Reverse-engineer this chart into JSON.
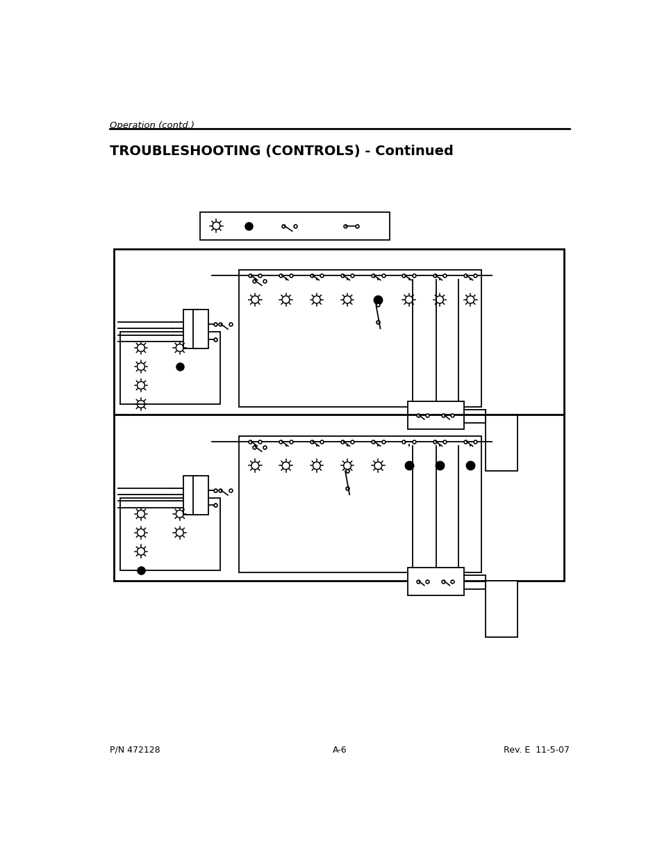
{
  "title": "TROUBLESHOOTING (CONTROLS) - Continued",
  "header_text": "Operation (contd.)",
  "footer_left": "P/N 472128",
  "footer_center": "A-6",
  "footer_right": "Rev. E  11-5-07",
  "bg_color": "#ffffff",
  "line_color": "#000000",
  "page_width": 9.54,
  "page_height": 12.35
}
